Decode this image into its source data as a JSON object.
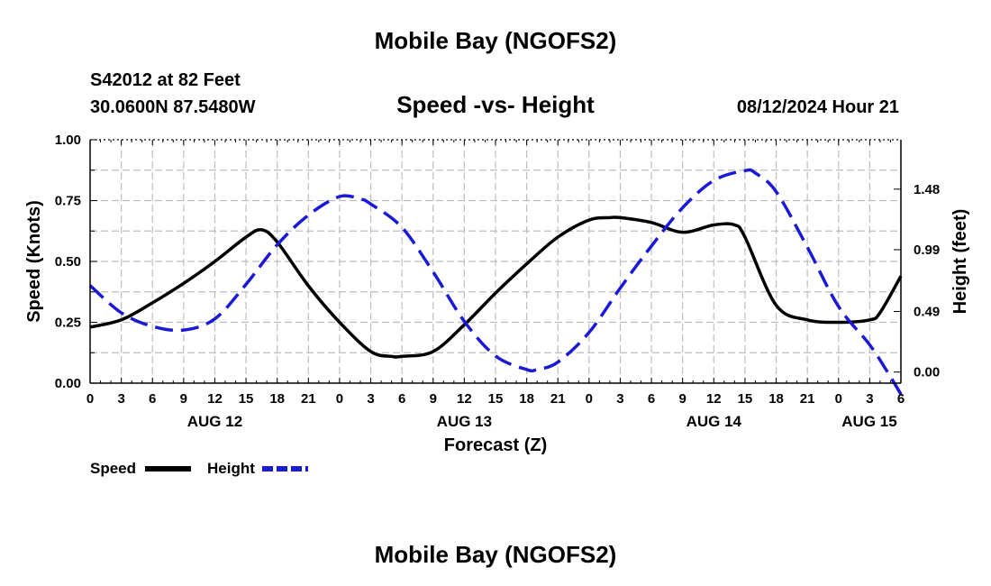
{
  "page": {
    "title": "Mobile Bay (NGOFS2)",
    "bottom_title": "Mobile Bay (NGOFS2)",
    "station": "S42012 at 82 Feet",
    "coords": "30.0600N  87.5480W",
    "datetime": "08/12/2024 Hour 21"
  },
  "chart_data": {
    "type": "line",
    "title": "Speed -vs- Height",
    "xlabel": "Forecast (Z)",
    "ylabel": "Speed (Knots)",
    "y2label": "Height (feet)",
    "x_ticks": [
      "0",
      "3",
      "6",
      "9",
      "12",
      "15",
      "18",
      "21",
      "0",
      "3",
      "6",
      "9",
      "12",
      "15",
      "18",
      "21",
      "0",
      "3",
      "6",
      "9",
      "12",
      "15",
      "18",
      "21",
      "0",
      "3",
      "6"
    ],
    "x_range_hours": [
      0,
      78
    ],
    "day_labels": [
      {
        "label": "AUG 12",
        "hour": 12
      },
      {
        "label": "AUG 13",
        "hour": 36
      },
      {
        "label": "AUG 14",
        "hour": 60
      },
      {
        "label": "AUG 15",
        "hour": 78
      }
    ],
    "ylim": [
      0,
      1.0
    ],
    "y_ticks": [
      "0.00",
      "0.25",
      "0.50",
      "0.75",
      "1.00"
    ],
    "y2lim": [
      -0.09,
      1.88
    ],
    "y2_ticks": [
      {
        "label": "0.00",
        "value": 0.0
      },
      {
        "label": "0.49",
        "value": 0.49
      },
      {
        "label": "0.99",
        "value": 0.99
      },
      {
        "label": "1.48",
        "value": 1.48
      }
    ],
    "grid": true,
    "legend": [
      {
        "name": "Speed",
        "color": "#000000",
        "dash": "solid"
      },
      {
        "name": "Height",
        "color": "#1a1ad6",
        "dash": "dashed"
      }
    ],
    "series": [
      {
        "name": "Speed",
        "axis": "left",
        "color": "#000000",
        "x": [
          0,
          3,
          6,
          9,
          12,
          15,
          16.5,
          18,
          21,
          24,
          27,
          29,
          30,
          33,
          36,
          39,
          42,
          45,
          48,
          50,
          51,
          54,
          57,
          60,
          62,
          63,
          66,
          69,
          72,
          75,
          76,
          78
        ],
        "values": [
          0.23,
          0.26,
          0.33,
          0.41,
          0.5,
          0.6,
          0.63,
          0.58,
          0.4,
          0.25,
          0.13,
          0.11,
          0.11,
          0.13,
          0.24,
          0.37,
          0.49,
          0.6,
          0.67,
          0.68,
          0.68,
          0.66,
          0.62,
          0.65,
          0.65,
          0.6,
          0.32,
          0.26,
          0.25,
          0.26,
          0.29,
          0.44
        ]
      },
      {
        "name": "Height",
        "axis": "right",
        "color": "#1a1ad6",
        "x": [
          0,
          3,
          6,
          9,
          12,
          15,
          18,
          21,
          24,
          26,
          27,
          30,
          33,
          36,
          39,
          42,
          43,
          45,
          48,
          51,
          54,
          57,
          60,
          63,
          64,
          66,
          69,
          72,
          75,
          77,
          78
        ],
        "values": [
          0.7,
          0.48,
          0.37,
          0.34,
          0.43,
          0.71,
          1.03,
          1.27,
          1.42,
          1.4,
          1.36,
          1.17,
          0.81,
          0.41,
          0.13,
          0.02,
          0.02,
          0.08,
          0.32,
          0.68,
          1.02,
          1.33,
          1.55,
          1.63,
          1.61,
          1.46,
          1.01,
          0.53,
          0.22,
          -0.04,
          -0.18
        ]
      }
    ]
  }
}
